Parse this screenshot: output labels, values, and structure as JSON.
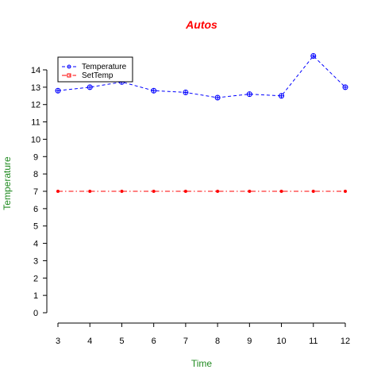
{
  "chart_data": {
    "type": "line",
    "title": "Autos",
    "xlabel": "Time",
    "ylabel": "Temperature",
    "x": [
      3,
      4,
      5,
      6,
      7,
      8,
      9,
      10,
      11,
      12
    ],
    "x_ticks": [
      "3",
      "4",
      "5",
      "6",
      "7",
      "8",
      "9",
      "10",
      "11",
      "12"
    ],
    "y_ticks": [
      "0",
      "1",
      "2",
      "3",
      "4",
      "5",
      "6",
      "7",
      "8",
      "9",
      "10",
      "11",
      "12",
      "13",
      "14"
    ],
    "xlim": [
      3,
      12
    ],
    "ylim": [
      0,
      14
    ],
    "grid": false,
    "legend_position": "top-left",
    "series": [
      {
        "name": "Temperature",
        "values": [
          12.8,
          13.0,
          13.3,
          12.8,
          12.7,
          12.4,
          12.6,
          12.5,
          14.8,
          13.0
        ],
        "color": "#0000ff",
        "marker": "circle-plus",
        "linestyle": "dashed"
      },
      {
        "name": "SetTemp",
        "values": [
          7,
          7,
          7,
          7,
          7,
          7,
          7,
          7,
          7,
          7
        ],
        "color": "#ff0000",
        "marker": "dot",
        "linestyle": "dash-dot"
      }
    ],
    "colors": {
      "title": "#ff0000",
      "axis_labels": "#228b22",
      "axes": "#000000"
    }
  }
}
